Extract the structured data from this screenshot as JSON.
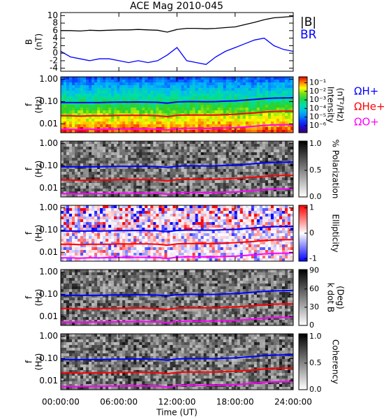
{
  "title": "ACE Mag 2010-045",
  "chart_data": [
    {
      "type": "line",
      "ylabel": [
        "B",
        "(nT)"
      ],
      "xlim": [
        0,
        24
      ],
      "ylim": [
        -4.8,
        10.8
      ],
      "yticks": [
        10,
        8,
        6,
        4,
        2,
        0,
        -2,
        -4
      ],
      "x": [
        0,
        1,
        2,
        3,
        4,
        5,
        6,
        7,
        8,
        9,
        10,
        11,
        12,
        13,
        14,
        15,
        16,
        17,
        18,
        19,
        20,
        21,
        22,
        23,
        24
      ],
      "series": [
        {
          "name": "|B|",
          "color": "#000000",
          "values": [
            6.0,
            6.0,
            5.9,
            6.1,
            6.0,
            6.1,
            6.2,
            6.2,
            6.3,
            6.2,
            6.1,
            5.6,
            6.3,
            6.6,
            6.6,
            6.5,
            6.6,
            6.8,
            7.0,
            7.6,
            8.2,
            8.9,
            9.4,
            9.6,
            9.8
          ]
        },
        {
          "name": "BR",
          "color": "#0000ff",
          "values": [
            0.5,
            -1.0,
            -1.5,
            -2.0,
            -1.5,
            -1.5,
            -2.0,
            -2.5,
            -2.0,
            -2.5,
            -2.0,
            -0.5,
            1.5,
            -2.0,
            -2.5,
            -3.0,
            -1.0,
            0.5,
            1.5,
            2.5,
            3.5,
            4.0,
            2.0,
            1.0,
            0.5
          ]
        }
      ]
    },
    {
      "type": "spectrogram",
      "ylabel": [
        "f",
        "(Hz)"
      ],
      "log_y": true,
      "xlim": [
        0,
        24
      ],
      "ylim": [
        0.004,
        1.3
      ],
      "yticks": [
        {
          "value": 1,
          "label": "1.00"
        },
        {
          "value": 0.1,
          "label": "0.10"
        },
        {
          "value": 0.01,
          "label": "0.01"
        }
      ],
      "colormap": "rainbow",
      "colorbar_label": [
        "Intensity",
        "(nT²/Hz)"
      ],
      "clog": true,
      "clim": [
        1.5e-07,
        0.5
      ],
      "cticks": [
        {
          "value": 0.1,
          "label": "10⁻¹"
        },
        {
          "value": 0.01,
          "label": "10⁻²"
        },
        {
          "value": 0.001,
          "label": "10⁻³"
        },
        {
          "value": 0.0001,
          "label": "10⁻⁴"
        },
        {
          "value": 1e-05,
          "label": "10⁻⁵"
        },
        {
          "value": 1e-06,
          "label": "10⁻⁶"
        }
      ],
      "legend": true,
      "x": [
        0,
        1,
        2,
        3,
        4,
        5,
        6,
        7,
        8,
        9,
        10,
        11,
        12,
        13,
        14,
        15,
        16,
        17,
        18,
        19,
        20,
        21,
        22,
        23,
        24
      ],
      "series": [
        {
          "name": "ΩH+",
          "color": "#0000ff",
          "values": [
            0.09,
            0.09,
            0.09,
            0.09,
            0.09,
            0.093,
            0.095,
            0.095,
            0.096,
            0.095,
            0.093,
            0.085,
            0.096,
            0.1,
            0.1,
            0.099,
            0.1,
            0.104,
            0.107,
            0.116,
            0.125,
            0.136,
            0.143,
            0.146,
            0.149
          ]
        },
        {
          "name": "ΩHe+",
          "color": "#ff0000",
          "values": [
            0.023,
            0.023,
            0.022,
            0.023,
            0.023,
            0.023,
            0.024,
            0.024,
            0.024,
            0.024,
            0.023,
            0.021,
            0.024,
            0.025,
            0.025,
            0.025,
            0.025,
            0.026,
            0.027,
            0.029,
            0.031,
            0.034,
            0.036,
            0.037,
            0.037
          ]
        },
        {
          "name": "ΩO+",
          "color": "#ff00ff",
          "values": [
            0.0056,
            0.0056,
            0.0055,
            0.0057,
            0.0056,
            0.0058,
            0.0059,
            0.0059,
            0.006,
            0.0059,
            0.0058,
            0.0053,
            0.006,
            0.0063,
            0.0063,
            0.0062,
            0.0063,
            0.0065,
            0.0067,
            0.0072,
            0.0078,
            0.0085,
            0.009,
            0.0091,
            0.0093
          ]
        }
      ]
    },
    {
      "type": "spectrogram",
      "ylabel": [
        "f",
        "(Hz)"
      ],
      "log_y": true,
      "xlim": [
        0,
        24
      ],
      "ylim": [
        0.004,
        1.3
      ],
      "yticks": [
        {
          "value": 1,
          "label": "1.00"
        },
        {
          "value": 0.1,
          "label": "0.10"
        },
        {
          "value": 0.01,
          "label": "0.01"
        }
      ],
      "colormap": "gray",
      "colorbar_label": [
        "% Polarization"
      ],
      "clim": [
        0,
        1.05
      ],
      "cticks": [
        {
          "value": 1,
          "label": "1.0"
        },
        {
          "value": 0.5,
          "label": "0.5"
        },
        {
          "value": 0,
          "label": "0.0"
        }
      ],
      "x": [
        0,
        1,
        2,
        3,
        4,
        5,
        6,
        7,
        8,
        9,
        10,
        11,
        12,
        13,
        14,
        15,
        16,
        17,
        18,
        19,
        20,
        21,
        22,
        23,
        24
      ],
      "series": [
        {
          "color": "#0000ff",
          "values": [
            0.09,
            0.09,
            0.09,
            0.09,
            0.09,
            0.093,
            0.095,
            0.095,
            0.096,
            0.095,
            0.093,
            0.085,
            0.096,
            0.1,
            0.1,
            0.099,
            0.1,
            0.104,
            0.107,
            0.116,
            0.125,
            0.136,
            0.143,
            0.146,
            0.149
          ]
        },
        {
          "color": "#ff0000",
          "values": [
            0.023,
            0.023,
            0.022,
            0.023,
            0.023,
            0.023,
            0.024,
            0.024,
            0.024,
            0.024,
            0.023,
            0.021,
            0.024,
            0.025,
            0.025,
            0.025,
            0.025,
            0.026,
            0.027,
            0.029,
            0.031,
            0.034,
            0.036,
            0.037,
            0.037
          ]
        },
        {
          "color": "#ff00ff",
          "values": [
            0.0056,
            0.0056,
            0.0055,
            0.0057,
            0.0056,
            0.0058,
            0.0059,
            0.0059,
            0.006,
            0.0059,
            0.0058,
            0.0053,
            0.006,
            0.0063,
            0.0063,
            0.0062,
            0.0063,
            0.0065,
            0.0067,
            0.0072,
            0.0078,
            0.0085,
            0.009,
            0.0091,
            0.0093
          ]
        }
      ]
    },
    {
      "type": "spectrogram",
      "ylabel": [
        "f",
        "(Hz)"
      ],
      "log_y": true,
      "xlim": [
        0,
        24
      ],
      "ylim": [
        0.004,
        1.3
      ],
      "yticks": [
        {
          "value": 1,
          "label": "1.00"
        },
        {
          "value": 0.1,
          "label": "0.10"
        },
        {
          "value": 0.01,
          "label": "0.01"
        }
      ],
      "colormap": "bwr",
      "colorbar_label": [
        "Ellipticity"
      ],
      "clim": [
        -1.1,
        1.1
      ],
      "cticks": [
        1,
        0,
        -1
      ],
      "x": [
        0,
        1,
        2,
        3,
        4,
        5,
        6,
        7,
        8,
        9,
        10,
        11,
        12,
        13,
        14,
        15,
        16,
        17,
        18,
        19,
        20,
        21,
        22,
        23,
        24
      ],
      "series": [
        {
          "color": "#0000ff",
          "values": [
            0.09,
            0.09,
            0.09,
            0.09,
            0.09,
            0.093,
            0.095,
            0.095,
            0.096,
            0.095,
            0.093,
            0.085,
            0.096,
            0.1,
            0.1,
            0.099,
            0.1,
            0.104,
            0.107,
            0.116,
            0.125,
            0.136,
            0.143,
            0.146,
            0.149
          ]
        },
        {
          "color": "#ff0000",
          "values": [
            0.023,
            0.023,
            0.022,
            0.023,
            0.023,
            0.023,
            0.024,
            0.024,
            0.024,
            0.024,
            0.023,
            0.021,
            0.024,
            0.025,
            0.025,
            0.025,
            0.025,
            0.026,
            0.027,
            0.029,
            0.031,
            0.034,
            0.036,
            0.037,
            0.037
          ]
        },
        {
          "color": "#ff00ff",
          "values": [
            0.0056,
            0.0056,
            0.0055,
            0.0057,
            0.0056,
            0.0058,
            0.0059,
            0.0059,
            0.006,
            0.0059,
            0.0058,
            0.0053,
            0.006,
            0.0063,
            0.0063,
            0.0062,
            0.0063,
            0.0065,
            0.0067,
            0.0072,
            0.0078,
            0.0085,
            0.009,
            0.0091,
            0.0093
          ]
        }
      ]
    },
    {
      "type": "spectrogram",
      "ylabel": [
        "f",
        "(Hz)"
      ],
      "log_y": true,
      "xlim": [
        0,
        24
      ],
      "ylim": [
        0.004,
        1.3
      ],
      "yticks": [
        {
          "value": 1,
          "label": "1.00"
        },
        {
          "value": 0.1,
          "label": "0.10"
        },
        {
          "value": 0.01,
          "label": "0.01"
        }
      ],
      "colormap": "gray",
      "colorbar_label": [
        "k dot B",
        "(Deg)"
      ],
      "clim": [
        0,
        92
      ],
      "cticks": [
        90,
        60,
        30,
        0
      ],
      "x": [
        0,
        1,
        2,
        3,
        4,
        5,
        6,
        7,
        8,
        9,
        10,
        11,
        12,
        13,
        14,
        15,
        16,
        17,
        18,
        19,
        20,
        21,
        22,
        23,
        24
      ],
      "series": [
        {
          "color": "#0000ff",
          "values": [
            0.09,
            0.09,
            0.09,
            0.09,
            0.09,
            0.093,
            0.095,
            0.095,
            0.096,
            0.095,
            0.093,
            0.085,
            0.096,
            0.1,
            0.1,
            0.099,
            0.1,
            0.104,
            0.107,
            0.116,
            0.125,
            0.136,
            0.143,
            0.146,
            0.149
          ]
        },
        {
          "color": "#ff0000",
          "values": [
            0.023,
            0.023,
            0.022,
            0.023,
            0.023,
            0.023,
            0.024,
            0.024,
            0.024,
            0.024,
            0.023,
            0.021,
            0.024,
            0.025,
            0.025,
            0.025,
            0.025,
            0.026,
            0.027,
            0.029,
            0.031,
            0.034,
            0.036,
            0.037,
            0.037
          ]
        },
        {
          "color": "#ff00ff",
          "values": [
            0.0056,
            0.0056,
            0.0055,
            0.0057,
            0.0056,
            0.0058,
            0.0059,
            0.0059,
            0.006,
            0.0059,
            0.0058,
            0.0053,
            0.006,
            0.0063,
            0.0063,
            0.0062,
            0.0063,
            0.0065,
            0.0067,
            0.0072,
            0.0078,
            0.0085,
            0.009,
            0.0091,
            0.0093
          ]
        }
      ]
    },
    {
      "type": "spectrogram",
      "ylabel": [
        "f",
        "(Hz)"
      ],
      "log_y": true,
      "xlim": [
        0,
        24
      ],
      "ylim": [
        0.004,
        1.3
      ],
      "yticks": [
        {
          "value": 1,
          "label": "1.00"
        },
        {
          "value": 0.1,
          "label": "0.10"
        },
        {
          "value": 0.01,
          "label": "0.01"
        }
      ],
      "colormap": "gray",
      "colorbar_label": [
        "Coherency"
      ],
      "clim": [
        0,
        1.05
      ],
      "cticks": [
        {
          "value": 1,
          "label": "1.0"
        },
        {
          "value": 0.5,
          "label": "0.5"
        },
        {
          "value": 0,
          "label": "0.0"
        }
      ],
      "xticks": [
        {
          "value": 0,
          "label": "00:00:00"
        },
        {
          "value": 6,
          "label": "06:00:00"
        },
        {
          "value": 12,
          "label": "12:00:00"
        },
        {
          "value": 18,
          "label": "18:00:00"
        },
        {
          "value": 24,
          "label": "24:00:00"
        }
      ],
      "xlabel": "Time (UT)",
      "x": [
        0,
        1,
        2,
        3,
        4,
        5,
        6,
        7,
        8,
        9,
        10,
        11,
        12,
        13,
        14,
        15,
        16,
        17,
        18,
        19,
        20,
        21,
        22,
        23,
        24
      ],
      "series": [
        {
          "color": "#0000ff",
          "values": [
            0.09,
            0.09,
            0.09,
            0.09,
            0.09,
            0.093,
            0.095,
            0.095,
            0.096,
            0.095,
            0.093,
            0.085,
            0.096,
            0.1,
            0.1,
            0.099,
            0.1,
            0.104,
            0.107,
            0.116,
            0.125,
            0.136,
            0.143,
            0.146,
            0.149
          ]
        },
        {
          "color": "#ff0000",
          "values": [
            0.023,
            0.023,
            0.022,
            0.023,
            0.023,
            0.023,
            0.024,
            0.024,
            0.024,
            0.024,
            0.023,
            0.021,
            0.024,
            0.025,
            0.025,
            0.025,
            0.025,
            0.026,
            0.027,
            0.029,
            0.031,
            0.034,
            0.036,
            0.037,
            0.037
          ]
        },
        {
          "color": "#ff00ff",
          "values": [
            0.0056,
            0.0056,
            0.0055,
            0.0057,
            0.0056,
            0.0058,
            0.0059,
            0.0059,
            0.006,
            0.0059,
            0.0058,
            0.0053,
            0.006,
            0.0063,
            0.0063,
            0.0062,
            0.0063,
            0.0065,
            0.0067,
            0.0072,
            0.0078,
            0.0085,
            0.009,
            0.0091,
            0.0093
          ]
        }
      ]
    }
  ]
}
